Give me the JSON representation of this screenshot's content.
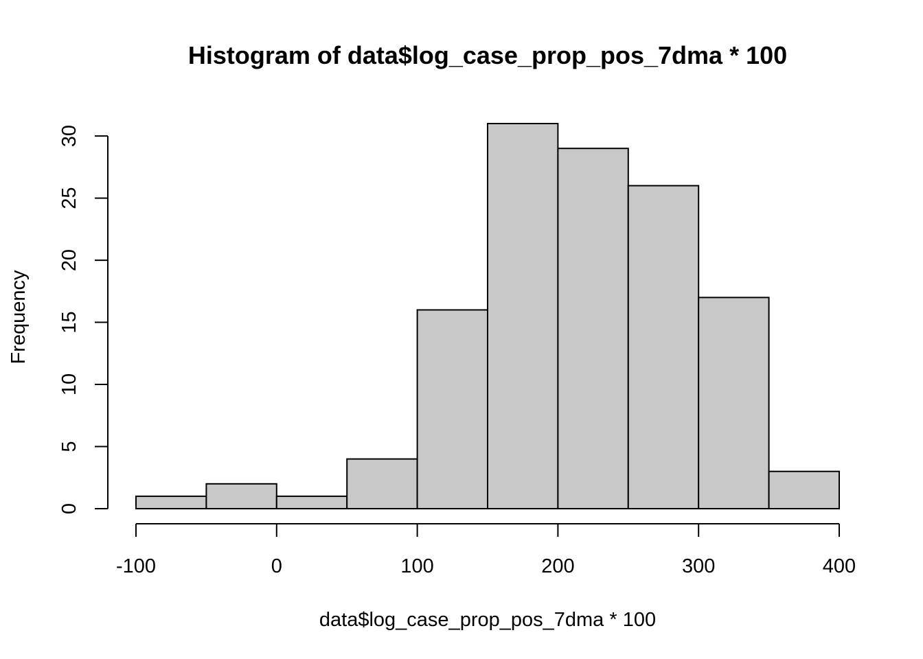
{
  "chart_data": {
    "type": "bar",
    "title": "Histogram of data$log_case_prop_pos_7dma * 100",
    "xlabel": "data$log_case_prop_pos_7dma * 100",
    "ylabel": "Frequency",
    "bin_edges": [
      -100,
      -50,
      0,
      50,
      100,
      150,
      200,
      250,
      300,
      350,
      400
    ],
    "values": [
      1,
      2,
      1,
      4,
      16,
      31,
      29,
      26,
      17,
      3
    ],
    "xlim": [
      -100,
      400
    ],
    "ylim": [
      0,
      31
    ],
    "x_ticks": [
      -100,
      0,
      100,
      200,
      300,
      400
    ],
    "x_tick_labels": [
      "-100",
      "0",
      "100",
      "200",
      "300",
      "400"
    ],
    "y_ticks": [
      0,
      5,
      10,
      15,
      20,
      25,
      30
    ],
    "y_tick_labels": [
      "0",
      "5",
      "10",
      "15",
      "20",
      "25",
      "30"
    ],
    "grid": false,
    "bar_color": "#c8c8c8",
    "edge_color": "#000000"
  }
}
